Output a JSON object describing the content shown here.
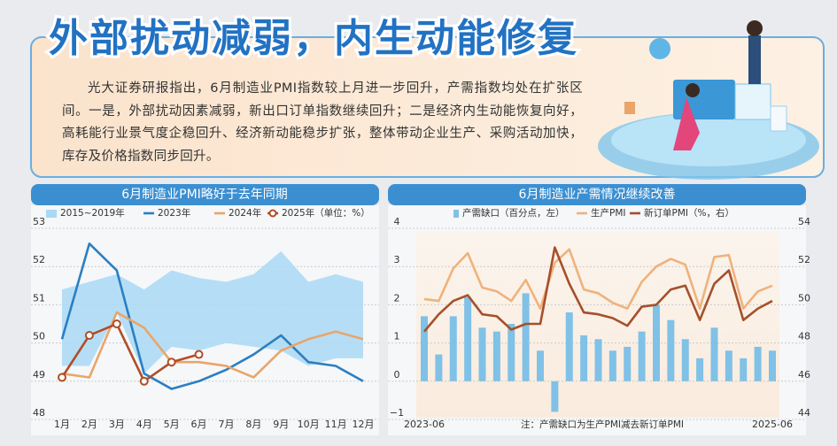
{
  "header": {
    "title": "外部扰动减弱，内生动能修复",
    "body": "光大证券研报指出，6月制造业PMI指数较上月进一步回升，产需指数均处在扩张区间。一是，外部扰动因素减弱，新出口订单指数继续回升；二是经济内生动能恢复向好，高耗能行业景气度企稳回升、经济新动能稳步扩张，整体带动企业生产、采购活动加快，库存及价格指数同步回升。"
  },
  "chart_data": [
    {
      "type": "line",
      "title": "6月制造业PMI略好于去年同期",
      "categories": [
        "1月",
        "2月",
        "3月",
        "4月",
        "5月",
        "6月",
        "7月",
        "8月",
        "9月",
        "10月",
        "11月",
        "12月"
      ],
      "ylim": [
        48,
        53
      ],
      "yticks": [
        48,
        49,
        50,
        51,
        52,
        53
      ],
      "grid": true,
      "series": [
        {
          "name": "2015~2019年",
          "type": "area",
          "color": "#a9d9f6",
          "high": [
            51.4,
            51.6,
            51.8,
            51.4,
            51.9,
            51.7,
            51.6,
            51.8,
            52.4,
            51.6,
            51.8,
            51.6
          ],
          "low": [
            49.4,
            49.4,
            50.8,
            49.2,
            49.9,
            49.8,
            50.0,
            49.9,
            49.8,
            49.4,
            49.6,
            49.6
          ]
        },
        {
          "name": "2023年",
          "color": "#2b7fc2",
          "values": [
            50.1,
            52.6,
            51.9,
            49.2,
            48.8,
            49.0,
            49.3,
            49.7,
            50.2,
            49.5,
            49.4,
            49.0
          ]
        },
        {
          "name": "2024年",
          "color": "#e9a56a",
          "values": [
            49.2,
            49.1,
            50.8,
            50.4,
            49.5,
            49.5,
            49.4,
            49.1,
            49.8,
            50.1,
            50.3,
            50.1
          ]
        },
        {
          "name": "2025年（单位：%）",
          "color": "#b04e27",
          "marker": "circle",
          "values": [
            49.1,
            50.2,
            50.5,
            49.0,
            49.5,
            49.7,
            null,
            null,
            null,
            null,
            null,
            null
          ]
        }
      ]
    },
    {
      "type": "bar",
      "title": "6月制造业产需情况继续改善",
      "note": "注：产需缺口为生产PMI减去新订单PMI",
      "categories": [
        "2023-06",
        null,
        null,
        null,
        null,
        null,
        null,
        null,
        null,
        null,
        null,
        null,
        null,
        null,
        null,
        null,
        null,
        null,
        null,
        null,
        null,
        null,
        null,
        null,
        "2025-06"
      ],
      "ylim": [
        -1,
        4
      ],
      "yticks": [
        {
          "value": -1,
          "label": "−1"
        },
        0,
        1,
        2,
        3,
        4
      ],
      "y2lim": [
        44,
        54
      ],
      "y2ticks": [
        44,
        46,
        48,
        50,
        52,
        54
      ],
      "grid": true,
      "series": [
        {
          "name": "产需缺口（百分点，左）",
          "type": "bar",
          "color": "#80c1e7",
          "values": [
            1.7,
            0.7,
            1.7,
            2.2,
            1.4,
            1.3,
            1.5,
            2.3,
            0.8,
            -0.8,
            1.8,
            1.2,
            1.1,
            0.8,
            0.9,
            1.3,
            2.0,
            1.6,
            1.1,
            0.6,
            1.4,
            0.8,
            0.6,
            0.9,
            0.8
          ]
        },
        {
          "name": "生产PMI",
          "type": "line",
          "axis": "y2",
          "color": "#efb27c",
          "values": [
            50.3,
            50.2,
            51.9,
            52.7,
            50.9,
            50.7,
            50.2,
            51.3,
            49.8,
            52.2,
            52.9,
            50.8,
            50.6,
            50.1,
            49.8,
            51.2,
            52.0,
            52.4,
            52.1,
            49.8,
            52.5,
            52.6,
            49.8,
            50.7,
            51.0
          ]
        },
        {
          "name": "新订单PMI（%，右）",
          "type": "line",
          "axis": "y2",
          "color": "#a5502a",
          "values": [
            48.6,
            49.5,
            50.2,
            50.5,
            49.5,
            49.4,
            48.7,
            49.0,
            49.0,
            53.0,
            51.1,
            49.6,
            49.5,
            49.3,
            48.9,
            49.9,
            50.0,
            50.8,
            51.0,
            49.2,
            51.1,
            51.8,
            49.2,
            49.8,
            50.2
          ]
        }
      ]
    }
  ]
}
